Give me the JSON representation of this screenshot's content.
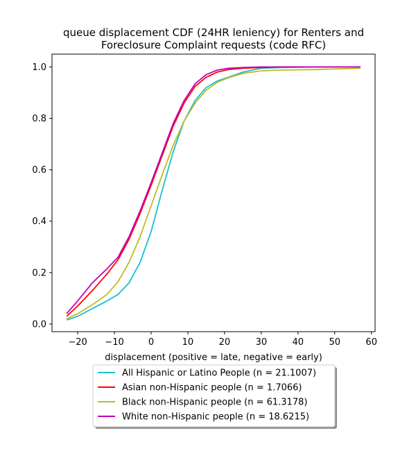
{
  "chart_data": {
    "type": "line",
    "title": "queue displacement CDF (24HR leniency) for Renters and\nForeclosure Complaint  requests (code RFC)",
    "xlabel": "displacement (positive = late, negative = early)",
    "ylabel": "",
    "xlim": [
      -27,
      61
    ],
    "ylim": [
      -0.03,
      1.05
    ],
    "xticks": [
      -20,
      -10,
      0,
      10,
      20,
      30,
      40,
      50,
      60
    ],
    "yticks": [
      0.0,
      0.2,
      0.4,
      0.6,
      0.8,
      1.0
    ],
    "grid": false,
    "legend_position": "below plot",
    "series": [
      {
        "name": "All Hispanic or Latino People (n = 21.1007)",
        "color": "#17becf",
        "x": [
          -23,
          -20,
          -16,
          -12,
          -9,
          -6,
          -3,
          0,
          3,
          6,
          9,
          12,
          15,
          18,
          21,
          25,
          30,
          35,
          45,
          57
        ],
        "y": [
          0.015,
          0.03,
          0.06,
          0.09,
          0.115,
          0.16,
          0.24,
          0.36,
          0.52,
          0.67,
          0.79,
          0.87,
          0.92,
          0.945,
          0.96,
          0.98,
          0.995,
          0.998,
          1.0,
          1.0
        ]
      },
      {
        "name": "Asian non-Hispanic people (n = 1.7066)",
        "color": "#ff0000",
        "x": [
          -23,
          -20,
          -16,
          -12,
          -9,
          -6,
          -3,
          0,
          3,
          6,
          9,
          12,
          15,
          18,
          21,
          25,
          30,
          35,
          45,
          57
        ],
        "y": [
          0.03,
          0.07,
          0.13,
          0.195,
          0.25,
          0.33,
          0.43,
          0.54,
          0.655,
          0.77,
          0.86,
          0.925,
          0.96,
          0.98,
          0.99,
          0.995,
          0.998,
          1.0,
          1.0,
          1.0
        ]
      },
      {
        "name": "Black non-Hispanic people (n = 61.3178)",
        "color": "#bcbd22",
        "x": [
          -23,
          -20,
          -16,
          -12,
          -9,
          -6,
          -3,
          0,
          3,
          6,
          9,
          12,
          15,
          18,
          21,
          25,
          30,
          35,
          45,
          57
        ],
        "y": [
          0.02,
          0.04,
          0.075,
          0.115,
          0.165,
          0.24,
          0.34,
          0.46,
          0.58,
          0.695,
          0.79,
          0.86,
          0.91,
          0.94,
          0.958,
          0.975,
          0.985,
          0.988,
          0.99,
          0.995
        ]
      },
      {
        "name": "White non-Hispanic people (n = 18.6215)",
        "color": "#bf00bf",
        "x": [
          -23,
          -20,
          -16,
          -12,
          -9,
          -6,
          -3,
          0,
          3,
          6,
          9,
          12,
          15,
          18,
          21,
          25,
          30,
          35,
          45,
          57
        ],
        "y": [
          0.04,
          0.09,
          0.16,
          0.215,
          0.26,
          0.34,
          0.44,
          0.55,
          0.665,
          0.78,
          0.87,
          0.935,
          0.97,
          0.988,
          0.995,
          0.998,
          1.0,
          1.0,
          1.0,
          1.0
        ]
      }
    ]
  }
}
